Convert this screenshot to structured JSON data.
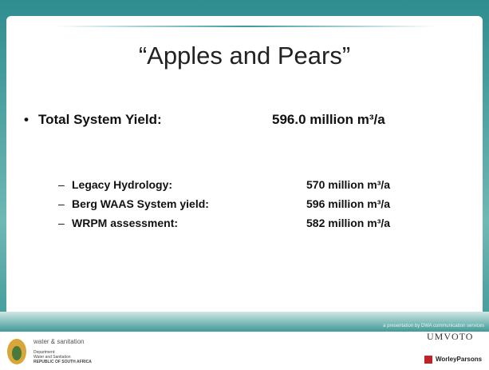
{
  "slide": {
    "title": "“Apples and Pears”",
    "main_bullet": {
      "label": "Total System Yield:",
      "value": "596.0 million m³/a"
    },
    "sub_bullets": [
      {
        "label": "Legacy Hydrology:",
        "value": "570 million m³/a"
      },
      {
        "label": "Berg WAAS System yield:",
        "value": "596 million m³/a"
      },
      {
        "label": "WRPM assessment:",
        "value": "582 million m³/a"
      }
    ],
    "footer": {
      "credit": "a presentation by DWA communication services",
      "dept_name": "water & sanitation",
      "dept_lines": [
        "Department:",
        "Water and Sanitation",
        "REPUBLIC OF SOUTH AFRICA"
      ],
      "partner1": "UMVOTO",
      "partner2": "WorleyParsons"
    }
  }
}
